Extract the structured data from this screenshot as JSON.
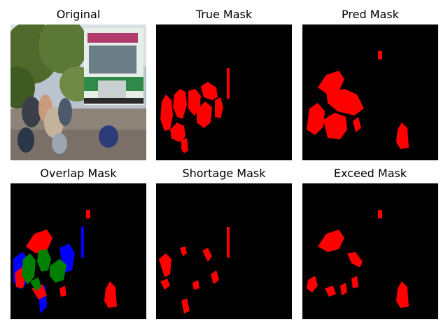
{
  "panels": [
    {
      "title": "Original"
    },
    {
      "title": "True Mask"
    },
    {
      "title": "Pred Mask"
    },
    {
      "title": "Overlap Mask"
    },
    {
      "title": "Shortage Mask"
    },
    {
      "title": "Exceed Mask"
    }
  ],
  "colors": {
    "background": "#000000",
    "mask": "#ff0000",
    "overlap_correct": "#008000",
    "overlap_missed": "#0000ff"
  }
}
